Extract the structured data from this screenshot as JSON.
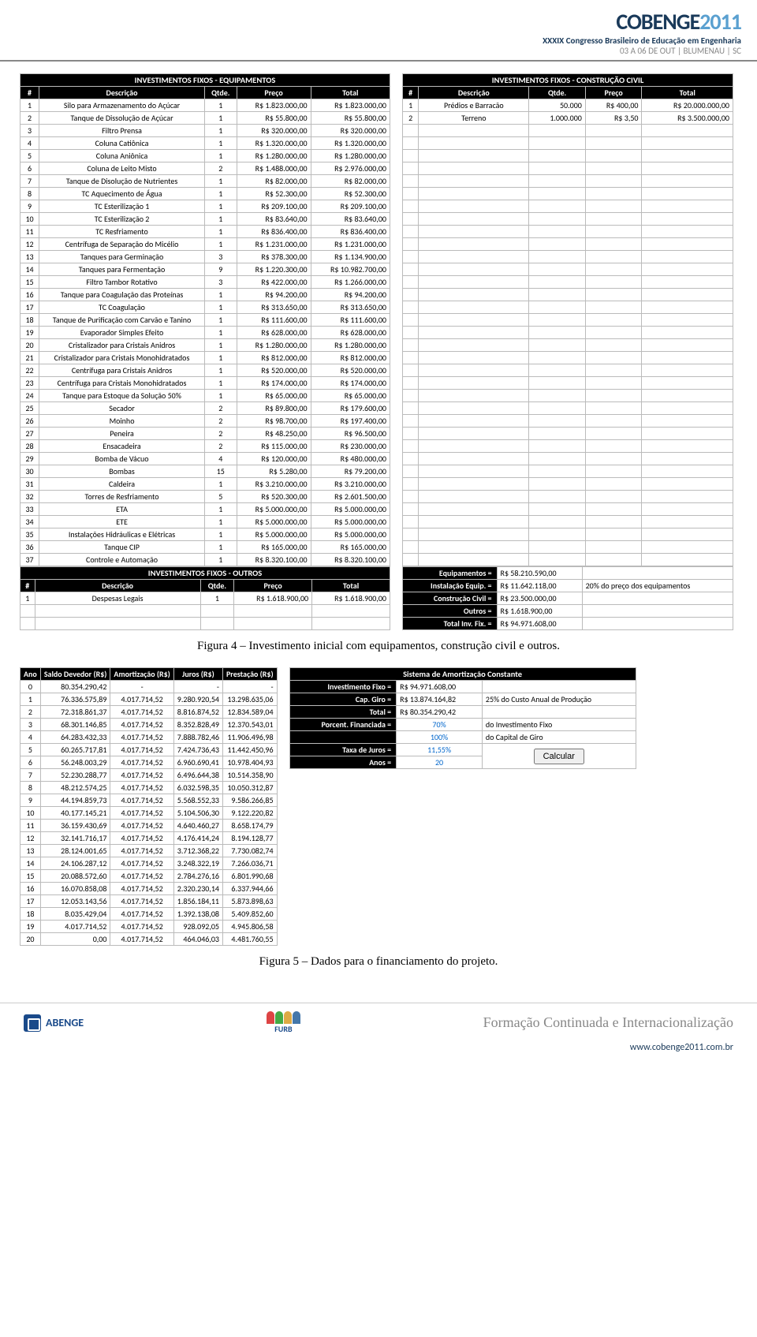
{
  "header": {
    "logo_text1": "COBENGE",
    "logo_text2": "2011",
    "sub1": "XXXIX Congresso Brasileiro de Educação em Engenharia",
    "sub2": "03 A 06 DE OUT | BLUMENAU | SC"
  },
  "equip": {
    "title": "INVESTIMENTOS FIXOS - EQUIPAMENTOS",
    "h_num": "#",
    "h_desc": "Descrição",
    "h_qtde": "Qtde.",
    "h_preco": "Preço",
    "h_total": "Total",
    "rows": [
      {
        "n": "1",
        "d": "Silo para Armazenamento do Açúcar",
        "q": "1",
        "p": "R$ 1.823.000,00",
        "t": "R$ 1.823.000,00"
      },
      {
        "n": "2",
        "d": "Tanque de Dissolução de Açúcar",
        "q": "1",
        "p": "R$ 55.800,00",
        "t": "R$ 55.800,00"
      },
      {
        "n": "3",
        "d": "Filtro Prensa",
        "q": "1",
        "p": "R$ 320.000,00",
        "t": "R$ 320.000,00"
      },
      {
        "n": "4",
        "d": "Coluna Catiônica",
        "q": "1",
        "p": "R$ 1.320.000,00",
        "t": "R$ 1.320.000,00"
      },
      {
        "n": "5",
        "d": "Coluna Aniônica",
        "q": "1",
        "p": "R$ 1.280.000,00",
        "t": "R$ 1.280.000,00"
      },
      {
        "n": "6",
        "d": "Coluna de Leito Misto",
        "q": "2",
        "p": "R$ 1.488.000,00",
        "t": "R$ 2.976.000,00"
      },
      {
        "n": "7",
        "d": "Tanque de Disolução de Nutrientes",
        "q": "1",
        "p": "R$ 82.000,00",
        "t": "R$ 82.000,00"
      },
      {
        "n": "8",
        "d": "TC Aquecimento de Água",
        "q": "1",
        "p": "R$ 52.300,00",
        "t": "R$ 52.300,00"
      },
      {
        "n": "9",
        "d": "TC Esterilização 1",
        "q": "1",
        "p": "R$ 209.100,00",
        "t": "R$ 209.100,00"
      },
      {
        "n": "10",
        "d": "TC Esterilização 2",
        "q": "1",
        "p": "R$ 83.640,00",
        "t": "R$ 83.640,00"
      },
      {
        "n": "11",
        "d": "TC Resfriamento",
        "q": "1",
        "p": "R$ 836.400,00",
        "t": "R$ 836.400,00"
      },
      {
        "n": "12",
        "d": "Centrífuga de Separação do Micélio",
        "q": "1",
        "p": "R$ 1.231.000,00",
        "t": "R$ 1.231.000,00"
      },
      {
        "n": "13",
        "d": "Tanques para Germinação",
        "q": "3",
        "p": "R$ 378.300,00",
        "t": "R$ 1.134.900,00"
      },
      {
        "n": "14",
        "d": "Tanques para Fermentação",
        "q": "9",
        "p": "R$ 1.220.300,00",
        "t": "R$ 10.982.700,00"
      },
      {
        "n": "15",
        "d": "Filtro Tambor Rotativo",
        "q": "3",
        "p": "R$ 422.000,00",
        "t": "R$ 1.266.000,00"
      },
      {
        "n": "16",
        "d": "Tanque para Coagulação das Proteínas",
        "q": "1",
        "p": "R$ 94.200,00",
        "t": "R$ 94.200,00"
      },
      {
        "n": "17",
        "d": "TC Coagulação",
        "q": "1",
        "p": "R$ 313.650,00",
        "t": "R$ 313.650,00"
      },
      {
        "n": "18",
        "d": "Tanque de Purificação com Carvão e Tanino",
        "q": "1",
        "p": "R$ 111.600,00",
        "t": "R$ 111.600,00"
      },
      {
        "n": "19",
        "d": "Evaporador Simples Efeito",
        "q": "1",
        "p": "R$ 628.000,00",
        "t": "R$ 628.000,00"
      },
      {
        "n": "20",
        "d": "Cristalizador para Cristais Anidros",
        "q": "1",
        "p": "R$ 1.280.000,00",
        "t": "R$ 1.280.000,00"
      },
      {
        "n": "21",
        "d": "Cristalizador para Cristais Monohidratados",
        "q": "1",
        "p": "R$ 812.000,00",
        "t": "R$ 812.000,00"
      },
      {
        "n": "22",
        "d": "Centrífuga para Cristais Anidros",
        "q": "1",
        "p": "R$ 520.000,00",
        "t": "R$ 520.000,00"
      },
      {
        "n": "23",
        "d": "Centrífuga para Cristais Monohidratados",
        "q": "1",
        "p": "R$ 174.000,00",
        "t": "R$ 174.000,00"
      },
      {
        "n": "24",
        "d": "Tanque para Estoque da Solução 50%",
        "q": "1",
        "p": "R$ 65.000,00",
        "t": "R$ 65.000,00"
      },
      {
        "n": "25",
        "d": "Secador",
        "q": "2",
        "p": "R$ 89.800,00",
        "t": "R$ 179.600,00"
      },
      {
        "n": "26",
        "d": "Moinho",
        "q": "2",
        "p": "R$ 98.700,00",
        "t": "R$ 197.400,00"
      },
      {
        "n": "27",
        "d": "Peneira",
        "q": "2",
        "p": "R$ 48.250,00",
        "t": "R$ 96.500,00"
      },
      {
        "n": "28",
        "d": "Ensacadeira",
        "q": "2",
        "p": "R$ 115.000,00",
        "t": "R$ 230.000,00"
      },
      {
        "n": "29",
        "d": "Bomba de Vácuo",
        "q": "4",
        "p": "R$ 120.000,00",
        "t": "R$ 480.000,00"
      },
      {
        "n": "30",
        "d": "Bombas",
        "q": "15",
        "p": "R$ 5.280,00",
        "t": "R$ 79.200,00"
      },
      {
        "n": "31",
        "d": "Caldeira",
        "q": "1",
        "p": "R$ 3.210.000,00",
        "t": "R$ 3.210.000,00"
      },
      {
        "n": "32",
        "d": "Torres de Resfriamento",
        "q": "5",
        "p": "R$ 520.300,00",
        "t": "R$ 2.601.500,00"
      },
      {
        "n": "33",
        "d": "ETA",
        "q": "1",
        "p": "R$ 5.000.000,00",
        "t": "R$ 5.000.000,00"
      },
      {
        "n": "34",
        "d": "ETE",
        "q": "1",
        "p": "R$ 5.000.000,00",
        "t": "R$ 5.000.000,00"
      },
      {
        "n": "35",
        "d": "Instalações Hidráulicas e Elétricas",
        "q": "1",
        "p": "R$ 5.000.000,00",
        "t": "R$ 5.000.000,00"
      },
      {
        "n": "36",
        "d": "Tanque CIP",
        "q": "1",
        "p": "R$ 165.000,00",
        "t": "R$ 165.000,00"
      },
      {
        "n": "37",
        "d": "Controle e Automação",
        "q": "1",
        "p": "R$ 8.320.100,00",
        "t": "R$ 8.320.100,00"
      }
    ]
  },
  "civil": {
    "title": "INVESTIMENTOS FIXOS - CONSTRUÇÃO CIVIL",
    "h_num": "#",
    "h_desc": "Descrição",
    "h_qtde": "Qtde.",
    "h_preco": "Preço",
    "h_total": "Total",
    "rows": [
      {
        "n": "1",
        "d": "Prédios e Barracão",
        "q": "50.000",
        "p": "R$ 400,00",
        "t": "R$ 20.000.000,00"
      },
      {
        "n": "2",
        "d": "Terreno",
        "q": "1.000.000",
        "p": "R$ 3,50",
        "t": "R$ 3.500.000,00"
      }
    ]
  },
  "outros": {
    "title": "INVESTIMENTOS FIXOS - OUTROS",
    "h_num": "#",
    "h_desc": "Descrição",
    "h_qtde": "Qtde.",
    "h_preco": "Preço",
    "h_total": "Total",
    "rows": [
      {
        "n": "1",
        "d": "Despesas Legais",
        "q": "1",
        "p": "R$ 1.618.900,00",
        "t": "R$ 1.618.900,00"
      }
    ]
  },
  "summary": {
    "l1": "Equipamentos =",
    "v1": "R$ 58.210.590,00",
    "l2": "Instalação Equip. =",
    "v2": "R$ 11.642.118,00",
    "n2": "20% do preço dos equipamentos",
    "l3": "Construção Civil =",
    "v3": "R$ 23.500.000,00",
    "l4": "Outros =",
    "v4": "R$ 1.618.900,00",
    "l5": "Total Inv. Fix. =",
    "v5": "R$ 94.971.608,00"
  },
  "caption1": "Figura 4 – Investimento inicial com equipamentos, construção civil e outros.",
  "amort": {
    "h0": "Ano",
    "h1": "Saldo Devedor (R$)",
    "h2": "Amortização (R$)",
    "h3": "Juros (R$)",
    "h4": "Prestação (R$)",
    "rows": [
      {
        "a": "0",
        "s": "80.354.290,42",
        "m": "-",
        "j": "-",
        "p": "-"
      },
      {
        "a": "1",
        "s": "76.336.575,89",
        "m": "4.017.714,52",
        "j": "9.280.920,54",
        "p": "13.298.635,06"
      },
      {
        "a": "2",
        "s": "72.318.861,37",
        "m": "4.017.714,52",
        "j": "8.816.874,52",
        "p": "12.834.589,04"
      },
      {
        "a": "3",
        "s": "68.301.146,85",
        "m": "4.017.714,52",
        "j": "8.352.828,49",
        "p": "12.370.543,01"
      },
      {
        "a": "4",
        "s": "64.283.432,33",
        "m": "4.017.714,52",
        "j": "7.888.782,46",
        "p": "11.906.496,98"
      },
      {
        "a": "5",
        "s": "60.265.717,81",
        "m": "4.017.714,52",
        "j": "7.424.736,43",
        "p": "11.442.450,96"
      },
      {
        "a": "6",
        "s": "56.248.003,29",
        "m": "4.017.714,52",
        "j": "6.960.690,41",
        "p": "10.978.404,93"
      },
      {
        "a": "7",
        "s": "52.230.288,77",
        "m": "4.017.714,52",
        "j": "6.496.644,38",
        "p": "10.514.358,90"
      },
      {
        "a": "8",
        "s": "48.212.574,25",
        "m": "4.017.714,52",
        "j": "6.032.598,35",
        "p": "10.050.312,87"
      },
      {
        "a": "9",
        "s": "44.194.859,73",
        "m": "4.017.714,52",
        "j": "5.568.552,33",
        "p": "9.586.266,85"
      },
      {
        "a": "10",
        "s": "40.177.145,21",
        "m": "4.017.714,52",
        "j": "5.104.506,30",
        "p": "9.122.220,82"
      },
      {
        "a": "11",
        "s": "36.159.430,69",
        "m": "4.017.714,52",
        "j": "4.640.460,27",
        "p": "8.658.174,79"
      },
      {
        "a": "12",
        "s": "32.141.716,17",
        "m": "4.017.714,52",
        "j": "4.176.414,24",
        "p": "8.194.128,77"
      },
      {
        "a": "13",
        "s": "28.124.001,65",
        "m": "4.017.714,52",
        "j": "3.712.368,22",
        "p": "7.730.082,74"
      },
      {
        "a": "14",
        "s": "24.106.287,12",
        "m": "4.017.714,52",
        "j": "3.248.322,19",
        "p": "7.266.036,71"
      },
      {
        "a": "15",
        "s": "20.088.572,60",
        "m": "4.017.714,52",
        "j": "2.784.276,16",
        "p": "6.801.990,68"
      },
      {
        "a": "16",
        "s": "16.070.858,08",
        "m": "4.017.714,52",
        "j": "2.320.230,14",
        "p": "6.337.944,66"
      },
      {
        "a": "17",
        "s": "12.053.143,56",
        "m": "4.017.714,52",
        "j": "1.856.184,11",
        "p": "5.873.898,63"
      },
      {
        "a": "18",
        "s": "8.035.429,04",
        "m": "4.017.714,52",
        "j": "1.392.138,08",
        "p": "5.409.852,60"
      },
      {
        "a": "19",
        "s": "4.017.714,52",
        "m": "4.017.714,52",
        "j": "928.092,05",
        "p": "4.945.806,58"
      },
      {
        "a": "20",
        "s": "0,00",
        "m": "4.017.714,52",
        "j": "464.046,03",
        "p": "4.481.760,55"
      }
    ]
  },
  "sac": {
    "title": "Sistema de Amortização Constante",
    "l1": "Investimento Fixo =",
    "v1": "R$ 94.971.608,00",
    "l2": "Cap. Giro =",
    "v2": "R$ 13.874.164,82",
    "n2": "25% do Custo Anual de Produção",
    "l3": "Total =",
    "v3": "R$ 80.354.290,42",
    "l4": "Porcent. Financiada =",
    "v4": "70%",
    "n4": "do Investimento Fixo",
    "v5": "100%",
    "n5": "do Capital de Giro",
    "l6": "Taxa de Juros =",
    "v6": "11,55%",
    "l7": "Anos =",
    "v7": "20",
    "btn": "Calcular"
  },
  "caption2": "Figura 5 – Dados para o financiamento do projeto.",
  "footer": {
    "abenge": "ABENGE",
    "furb": "FURB",
    "title": "Formação Continuada e Internacionalização",
    "url": "www.cobenge2011.com.br"
  }
}
